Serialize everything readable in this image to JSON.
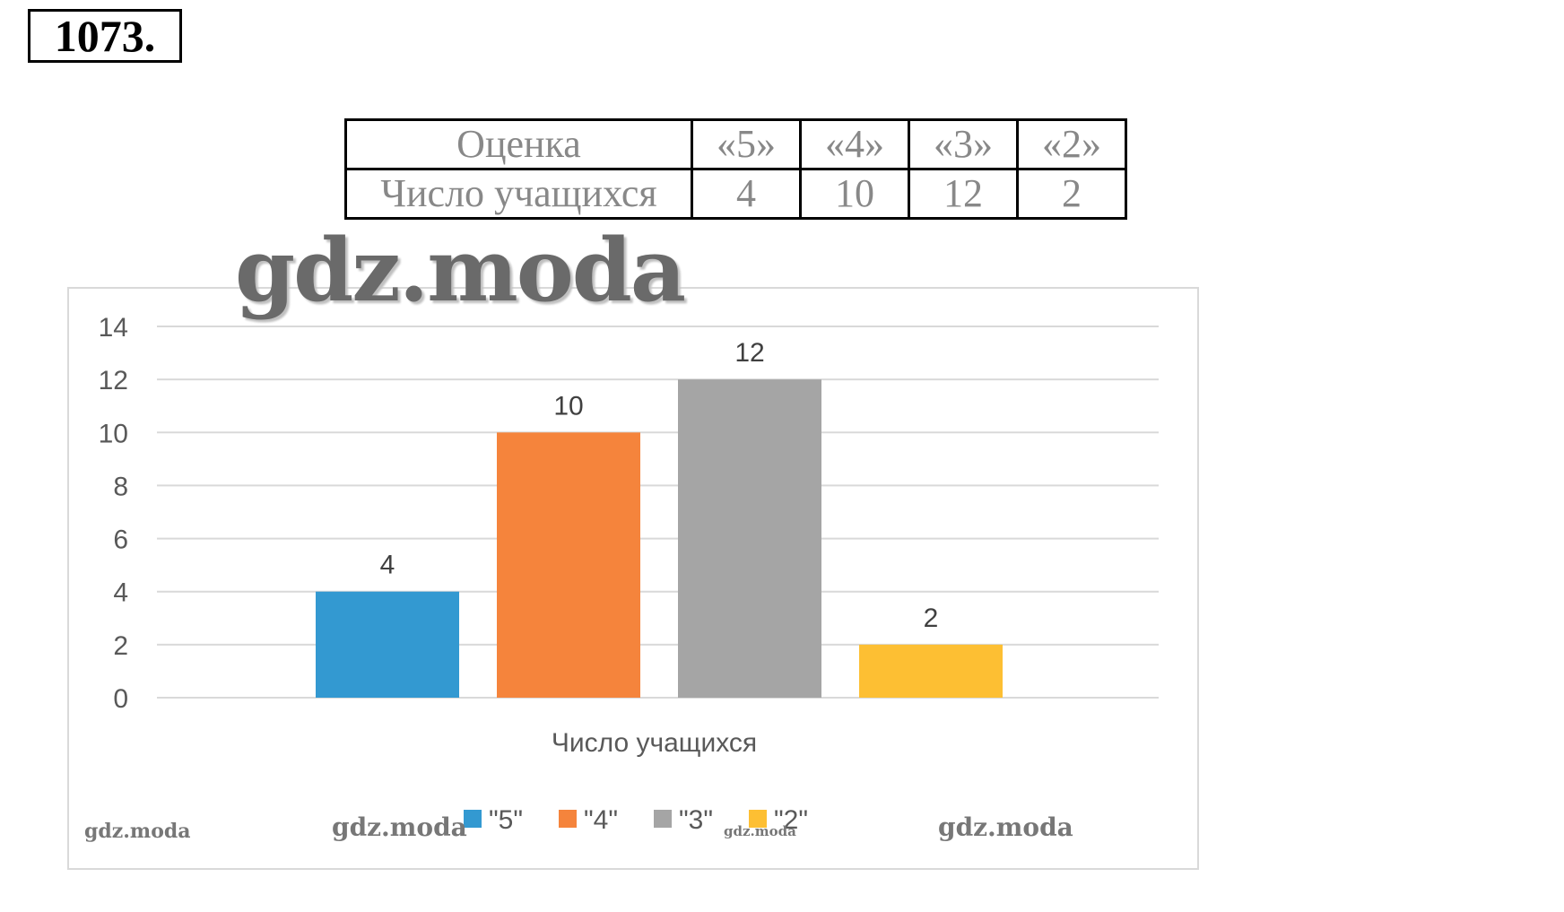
{
  "problem_number": "1073.",
  "table": {
    "row1_label": "Оценка",
    "row2_label": "Число учащихся",
    "grades": [
      "«5»",
      "«4»",
      "«3»",
      "«2»"
    ],
    "counts": [
      "4",
      "10",
      "12",
      "2"
    ]
  },
  "watermarks": {
    "main": "gdz.moda",
    "left": "gdz.moda",
    "legend_left": "gdz.moda",
    "legend_mid": "gdz.moda",
    "right": "gdz.moda"
  },
  "chart_data": {
    "type": "bar",
    "categories": [
      "Число учащихся"
    ],
    "xlabel": "Число учащихся",
    "ylim": [
      0,
      14
    ],
    "yticks": [
      0,
      2,
      4,
      6,
      8,
      10,
      12,
      14
    ],
    "grid": true,
    "legend_position": "bottom",
    "series": [
      {
        "name": "\"5\"",
        "values": [
          4
        ],
        "color": "#3399d1"
      },
      {
        "name": "\"4\"",
        "values": [
          10
        ],
        "color": "#f5843c"
      },
      {
        "name": "\"3\"",
        "values": [
          12
        ],
        "color": "#a5a5a5"
      },
      {
        "name": "\"2\"",
        "values": [
          2
        ],
        "color": "#fdbf33"
      }
    ]
  }
}
